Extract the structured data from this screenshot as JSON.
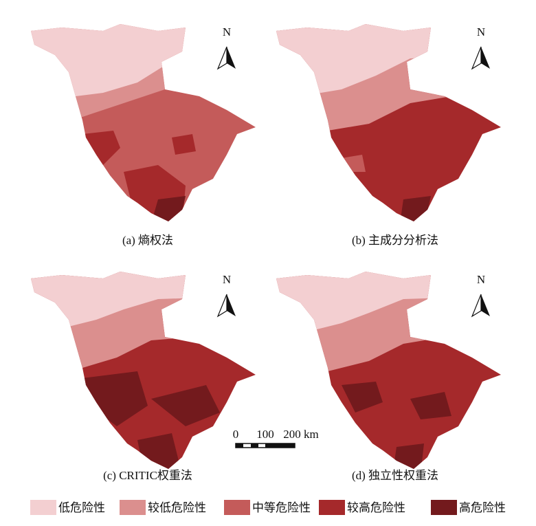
{
  "panels": [
    {
      "caption": "(a) 熵权法",
      "north": "N"
    },
    {
      "caption": "(b) 主成分分析法",
      "north": "N"
    },
    {
      "caption": "(c) CRITIC权重法",
      "north": "N"
    },
    {
      "caption": "(d) 独立性权重法",
      "north": "N"
    }
  ],
  "scale_bar": {
    "labels": [
      "0",
      "100",
      "200 km"
    ]
  },
  "legend": [
    {
      "label": "低危险性",
      "color": "#f3cfd1"
    },
    {
      "label": "较低危险性",
      "color": "#db8f8e"
    },
    {
      "label": "中等危险性",
      "color": "#c45b5a"
    },
    {
      "label": "较高危险性",
      "color": "#a5292b"
    },
    {
      "label": "高危险性",
      "color": "#731a1d"
    }
  ]
}
